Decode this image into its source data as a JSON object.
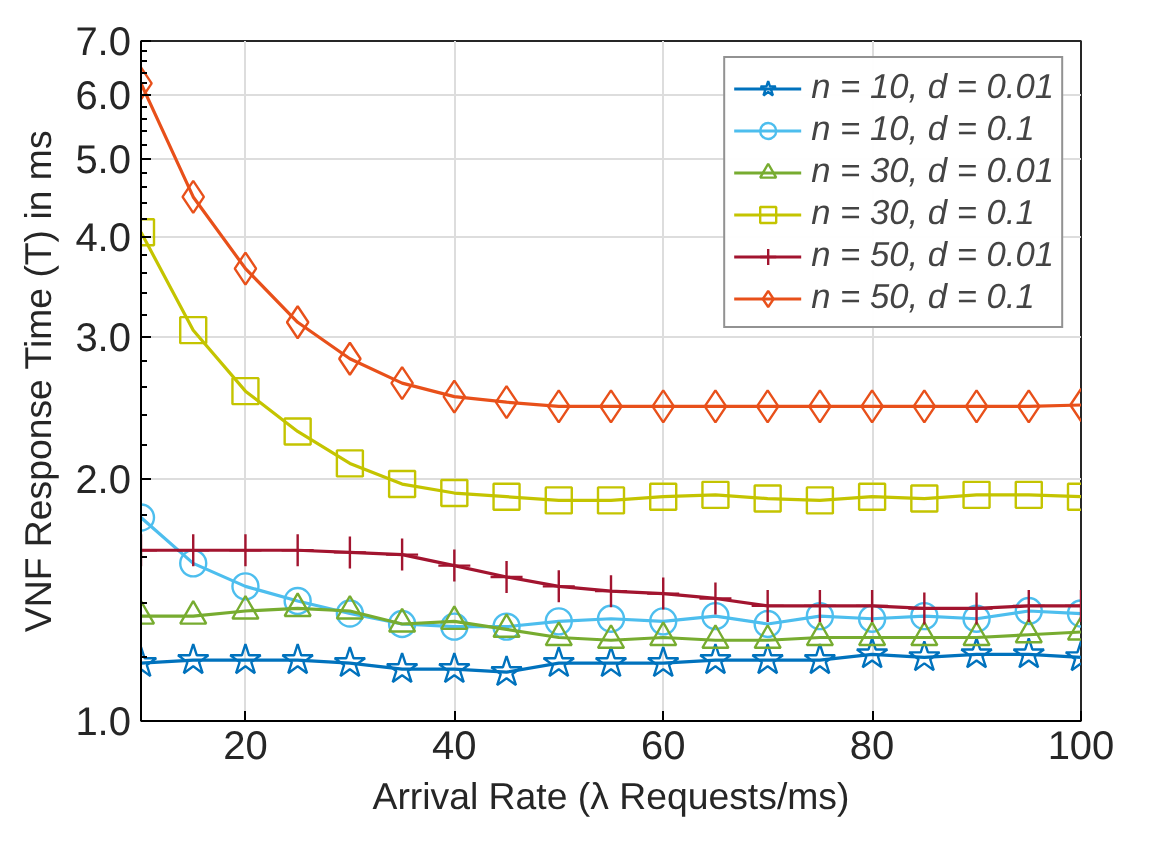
{
  "chart_data": {
    "type": "line",
    "xlabel": "Arrival Rate (λ Requests/ms)",
    "ylabel": "VNF Response Time (T) in ms",
    "log": "y",
    "grid": true,
    "legend": "top right",
    "xlim": [
      10,
      100
    ],
    "xticks": [
      20,
      40,
      60,
      80,
      100
    ],
    "ylim": [
      1.0,
      7.0
    ],
    "yticks": [
      {
        "value": 1,
        "label": "1.0"
      },
      {
        "value": 2,
        "label": "2.0"
      },
      {
        "value": 3,
        "label": "3.0"
      },
      {
        "value": 4,
        "label": "4.0"
      },
      {
        "value": 5,
        "label": "5.0"
      },
      {
        "value": 6,
        "label": "6.0"
      },
      {
        "value": 7,
        "label": "7.0"
      }
    ],
    "x": [
      10,
      15,
      20,
      25,
      30,
      35,
      40,
      45,
      50,
      55,
      60,
      65,
      70,
      75,
      80,
      85,
      90,
      95,
      100
    ],
    "series": [
      {
        "name": "n = 10, d = 0.01",
        "color": "#0072bd",
        "marker": "star",
        "values": [
          1.18,
          1.19,
          1.19,
          1.19,
          1.18,
          1.16,
          1.16,
          1.15,
          1.18,
          1.18,
          1.18,
          1.19,
          1.19,
          1.19,
          1.21,
          1.2,
          1.21,
          1.21,
          1.2
        ]
      },
      {
        "name": "n = 10, d = 0.1",
        "color": "#4dbeee",
        "marker": "circle",
        "values": [
          1.79,
          1.57,
          1.47,
          1.41,
          1.36,
          1.32,
          1.31,
          1.31,
          1.33,
          1.34,
          1.33,
          1.35,
          1.32,
          1.35,
          1.34,
          1.35,
          1.34,
          1.37,
          1.36
        ]
      },
      {
        "name": "n = 30, d = 0.01",
        "color": "#77ac30",
        "marker": "triangle",
        "values": [
          1.35,
          1.35,
          1.37,
          1.38,
          1.37,
          1.32,
          1.33,
          1.3,
          1.27,
          1.26,
          1.27,
          1.26,
          1.26,
          1.27,
          1.27,
          1.27,
          1.27,
          1.28,
          1.29
        ]
      },
      {
        "name": "n = 30, d = 0.1",
        "color": "#c4c400",
        "marker": "square",
        "values": [
          4.05,
          3.06,
          2.57,
          2.29,
          2.09,
          1.97,
          1.92,
          1.9,
          1.88,
          1.88,
          1.9,
          1.91,
          1.89,
          1.88,
          1.9,
          1.89,
          1.91,
          1.91,
          1.9
        ]
      },
      {
        "name": "n = 50, d = 0.01",
        "color": "#a2142f",
        "marker": "cross",
        "values": [
          1.63,
          1.63,
          1.63,
          1.63,
          1.62,
          1.61,
          1.56,
          1.51,
          1.47,
          1.45,
          1.44,
          1.42,
          1.39,
          1.39,
          1.39,
          1.38,
          1.38,
          1.39,
          1.39
        ]
      },
      {
        "name": "n = 50, d = 0.1",
        "color": "#e8501a",
        "marker": "diamond",
        "values": [
          6.2,
          4.48,
          3.65,
          3.13,
          2.82,
          2.63,
          2.53,
          2.49,
          2.46,
          2.46,
          2.46,
          2.46,
          2.46,
          2.46,
          2.46,
          2.46,
          2.46,
          2.46,
          2.47
        ]
      }
    ]
  }
}
